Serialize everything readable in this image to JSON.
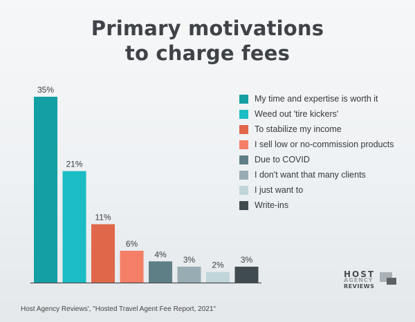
{
  "title_lines": [
    "Primary motivations",
    "to charge fees"
  ],
  "source": "Host Agency Reviews', \"Hosted Travel Agent Fee Report, 2021\"",
  "logo": {
    "line1": "HOST",
    "line2": "AGENCY",
    "line3": "REVIEWS"
  },
  "chart_data": {
    "type": "bar",
    "title": "Primary motivations to charge fees",
    "categories": [
      "My time and expertise is worth it",
      "Weed out 'tire kickers'",
      "To stabilize my income",
      "I sell low or no-commission products",
      "Due to COVID",
      "I don't want that many clients",
      "I just want to",
      "Write-ins"
    ],
    "values": [
      35,
      21,
      11,
      6,
      4,
      3,
      2,
      3
    ],
    "value_labels": [
      "35%",
      "21%",
      "11%",
      "6%",
      "4%",
      "3%",
      "2%",
      "3%"
    ],
    "colors": [
      "#139fa4",
      "#1bbcc4",
      "#e0674a",
      "#f47f66",
      "#5f7f87",
      "#98adb3",
      "#bfd5da",
      "#404b4f"
    ],
    "ylim": [
      0,
      35
    ],
    "unit": "%",
    "grid": false,
    "legend": "right"
  }
}
